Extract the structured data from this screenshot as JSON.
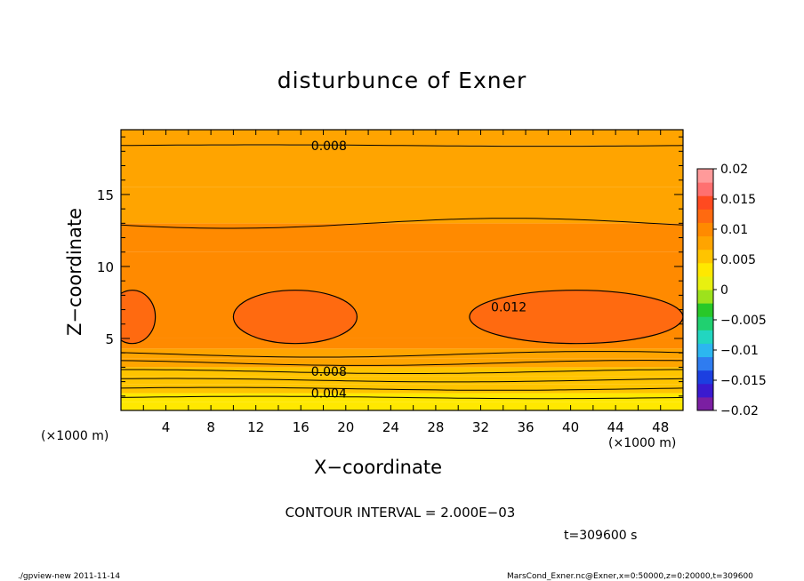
{
  "figure": {
    "title": "disturbunce of Exner",
    "xlabel": "X−coordinate",
    "ylabel": "Z−coordinate",
    "x_unit_left": "(×1000 m)",
    "x_unit_right": "(×1000 m)",
    "contour_interval_text": "CONTOUR INTERVAL = 2.000E−03",
    "time_text": "t=309600 s",
    "footer_left": "./gpview-new   2011-11-14",
    "footer_right": "MarsCond_Exner.nc@Exner,x=0:50000,z=0:20000,t=309600"
  },
  "chart_data": {
    "type": "heatmap",
    "title": "disturbunce of Exner",
    "xlabel": "X−coordinate",
    "ylabel": "Z−coordinate",
    "xlim": [
      0,
      50
    ],
    "ylim": [
      0,
      19.5
    ],
    "x_ticks": [
      4,
      8,
      12,
      16,
      20,
      24,
      28,
      32,
      36,
      40,
      44,
      48
    ],
    "y_ticks": [
      5,
      10,
      15
    ],
    "contour_interval": 0.002,
    "contour_labels": [
      "0.008",
      "0.012",
      "0.008",
      "0.004"
    ],
    "colorbar": {
      "ticks": [
        "0.02",
        "0.015",
        "0.01",
        "0.005",
        "0",
        "−0.005",
        "−0.01",
        "−0.015",
        "−0.02"
      ],
      "range": [
        -0.02,
        0.02
      ],
      "colors": [
        "#7b1fa2",
        "#3a1acf",
        "#1c3fe0",
        "#2f7cf0",
        "#2cb6f0",
        "#22d6c0",
        "#20d070",
        "#28c828",
        "#9de21c",
        "#e8f010",
        "#ffe800",
        "#ffc400",
        "#ffa400",
        "#ff8a00",
        "#ff6a10",
        "#ff4a20",
        "#ff7070",
        "#ff9a9a"
      ]
    },
    "bands": [
      {
        "z": 0.0,
        "value": 0.0026
      },
      {
        "z": 0.6,
        "value": 0.0036
      },
      {
        "z": 1.2,
        "value": 0.0046
      },
      {
        "z": 1.8,
        "value": 0.0056
      },
      {
        "z": 2.4,
        "value": 0.0066
      },
      {
        "z": 3.0,
        "value": 0.0076
      },
      {
        "z": 3.6,
        "value": 0.0086
      },
      {
        "z": 4.3,
        "value": 0.0094
      },
      {
        "z": 5.0,
        "value": 0.0104
      },
      {
        "z": 11.0,
        "value": 0.0096
      },
      {
        "z": 13.0,
        "value": 0.0086
      },
      {
        "z": 15.5,
        "value": 0.0076
      },
      {
        "z": 18.4,
        "value": 0.0068
      }
    ],
    "maxima": [
      {
        "x": 15.5,
        "z": 6.5,
        "value": 0.0128
      },
      {
        "x": 1.0,
        "z": 6.5,
        "value": 0.0124
      },
      {
        "x": 41.0,
        "z": 6.5,
        "value": 0.0124
      }
    ]
  }
}
